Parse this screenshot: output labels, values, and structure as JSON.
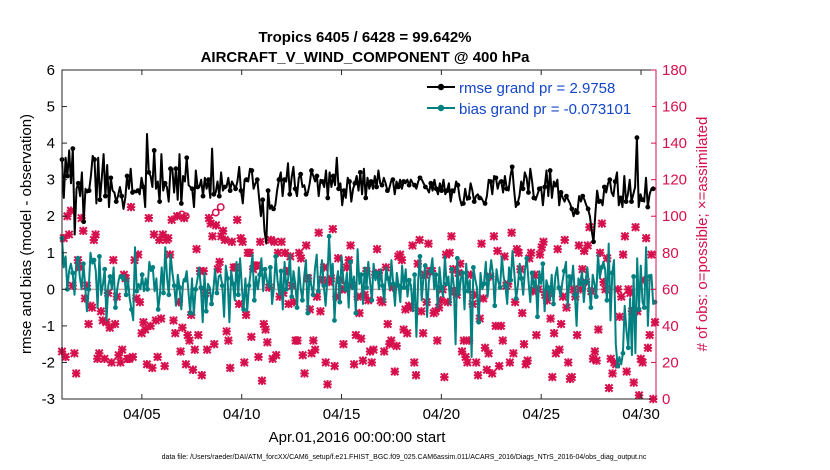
{
  "chart_data": {
    "type": "line",
    "title_line1": "Tropics 6405 / 6428 = 99.642%",
    "title_line2": "AIRCRAFT_V_WIND_COMPONENT @ 400 hPa",
    "xlabel": "Apr.01,2016 00:00:00 start",
    "ylabel_left": "rmse and bias (model - observation)",
    "ylabel_right": "# of obs: o=possible; ×=assimilated",
    "footer": "data file: /Users/raeder/DAI/ATM_forcXX/CAM6_setup/f.e21.FHIST_BGC.f09_025.CAM6assim.011/ACARS_2016/Diags_NTrS_2016-04/obs_diag_output.nc",
    "xlim": [
      1.0,
      30.75
    ],
    "ylim_left": [
      -3,
      6
    ],
    "ylim_right": [
      0,
      180
    ],
    "x_ticks": [
      {
        "value": 5,
        "label": "04/05"
      },
      {
        "value": 10,
        "label": "04/10"
      },
      {
        "value": 15,
        "label": "04/15"
      },
      {
        "value": 20,
        "label": "04/20"
      },
      {
        "value": 25,
        "label": "04/25"
      },
      {
        "value": 30,
        "label": "04/30"
      }
    ],
    "y_ticks_left": [
      "-3",
      "-2",
      "-1",
      "0",
      "1",
      "2",
      "3",
      "4",
      "5",
      "6"
    ],
    "y_ticks_right": [
      "0",
      "20",
      "40",
      "60",
      "80",
      "100",
      "120",
      "140",
      "160",
      "180"
    ],
    "legend": [
      {
        "label": "rmse grand pr = 2.9758",
        "color": "#000000"
      },
      {
        "label": "bias grand pr = -0.073101",
        "color": "#008080"
      }
    ],
    "legend_text_color": "#1446c8",
    "series": [
      {
        "name": "rmse",
        "color": "#000000",
        "values": [
          3.55,
          2.5,
          3.6,
          3.1,
          3.8,
          2.9,
          3.85,
          1.5,
          2.75,
          2.9,
          2.55,
          3.2,
          1.85,
          2.75,
          2.65,
          2.7,
          3.1,
          3.65,
          3.55,
          2.35,
          3.6,
          2.45,
          3.05,
          3.7,
          2.55,
          3.4,
          2.25,
          3.05,
          2.7,
          2.65,
          2.4,
          2.55,
          2.8,
          2.55,
          2.2,
          2.5,
          3.1,
          2.75,
          3.3,
          2.65,
          2.7,
          2.65,
          2.7,
          2.6,
          3.05,
          2.8,
          2.25,
          4.25,
          3.2,
          3.1,
          2.8,
          3.8,
          2.75,
          2.95,
          2.4,
          3.7,
          2.7,
          2.9,
          2.8,
          2.4,
          3.3,
          3.3,
          2.65,
          3.3,
          2.45,
          3.7,
          2.35,
          3.1,
          2.95,
          3.6,
          2.85,
          2.8,
          2.75,
          2.25,
          3.25,
          2.8,
          2.8,
          3.0,
          2.55,
          3.05,
          2.75,
          3.0,
          2.5,
          3.85,
          2.6,
          2.65,
          2.95,
          2.55,
          3.2,
          2.7,
          2.8,
          2.8,
          3.05,
          2.7,
          2.95,
          2.85,
          2.75,
          2.95,
          3.35,
          2.7,
          2.35,
          3.0,
          3.0,
          2.95,
          3.3,
          3.25,
          2.75,
          2.9,
          3.0,
          2.5,
          2.0,
          2.45,
          1.6,
          1.25,
          2.7,
          2.2,
          2.3,
          2.2,
          2.3,
          2.7,
          3.0,
          3.2,
          2.55,
          3.0,
          2.95,
          3.45,
          2.6,
          3.05,
          3.35,
          2.75,
          2.55,
          3.05,
          3.15,
          2.8,
          2.85,
          2.6,
          2.65,
          2.9,
          3.25,
          3.1,
          2.95,
          3.1,
          2.55,
          3.0,
          2.95,
          2.8,
          3.25,
          2.5,
          3.2,
          2.8,
          3.1,
          2.85,
          3.6,
          2.75,
          2.9,
          2.3,
          2.7,
          2.5,
          3.05,
          2.95,
          2.4,
          2.75,
          2.9,
          3.1,
          2.7,
          3.2,
          2.6,
          3.3,
          2.5,
          3.05,
          2.75,
          2.95,
          2.75,
          3.1,
          2.8,
          3.25,
          2.9,
          2.85,
          3.05,
          2.9,
          2.7,
          2.75,
          2.95,
          3.0,
          2.6,
          2.95,
          2.8,
          3.0,
          2.75,
          2.95,
          2.9,
          3.0,
          2.85,
          3.0,
          2.9,
          2.85,
          2.75,
          2.95,
          3.05,
          3.0,
          2.9,
          2.8,
          2.75,
          2.65,
          2.9,
          2.7,
          3.0,
          2.75,
          2.6,
          2.9,
          2.7,
          3.0,
          2.6,
          2.7,
          2.9,
          2.4,
          2.7,
          2.65,
          2.95,
          2.85,
          2.5,
          2.3,
          2.35,
          2.75,
          2.45,
          2.5,
          2.9,
          2.7,
          2.4,
          2.55,
          2.6,
          2.5,
          2.5,
          2.4,
          2.35,
          2.55,
          3.0,
          2.95,
          2.6,
          3.1,
          3.05,
          2.75,
          2.95,
          2.95,
          2.65,
          3.1,
          2.75,
          2.7,
          3.1,
          3.35,
          2.75,
          2.25,
          2.35,
          2.55,
          2.95,
          2.75,
          3.2,
          3.05,
          2.65,
          3.3,
          2.95,
          2.5,
          2.45,
          2.6,
          2.75,
          2.8,
          2.3,
          2.8,
          3.25,
          2.55,
          3.25,
          2.5,
          2.95,
          2.85,
          3.0,
          2.3,
          2.65,
          2.5,
          2.4,
          2.55,
          2.45,
          2.35,
          2.2,
          2.0,
          2.2,
          2.1,
          2.55,
          2.4,
          2.55,
          2.45,
          2.3,
          2.2,
          2.0,
          1.6,
          1.3,
          2.05,
          2.7,
          2.4,
          2.45,
          2.3,
          2.8,
          2.65,
          2.9,
          3.0,
          2.65,
          2.55,
          2.95,
          3.2,
          2.3,
          2.5,
          2.25,
          3.1,
          2.4,
          2.6,
          3.0,
          2.4,
          2.6,
          2.8,
          4.15,
          2.25,
          2.6,
          2.45,
          2.4,
          3.05,
          2.25,
          2.6,
          2.75,
          2.75,
          2.75
        ]
      },
      {
        "name": "bias",
        "color": "#008080",
        "values": [
          1.4,
          0.6,
          0.9,
          0.0,
          0.5,
          0.7,
          0.45,
          -0.15,
          0.7,
          0.85,
          0.35,
          0.0,
          0.7,
          0.1,
          -0.6,
          0.0,
          1.0,
          0.7,
          0.8,
          0.5,
          -0.5,
          0.9,
          -0.15,
          0.15,
          0.55,
          -0.85,
          0.1,
          0.35,
          0.0,
          0.6,
          -0.5,
          0.0,
          0.3,
          0.35,
          0.25,
          0.4,
          -0.15,
          0.3,
          -0.25,
          -0.55,
          -0.85,
          1.15,
          -0.05,
          0.15,
          0.0,
          0.4,
          -0.05,
          0.3,
          0.0,
          0.75,
          0.5,
          0.6,
          -0.05,
          0.3,
          -0.55,
          -0.15,
          0.6,
          -0.1,
          1.15,
          0.3,
          -0.15,
          0.95,
          0.45,
          0.1,
          -0.45,
          0.4,
          0.05,
          -0.55,
          0.2,
          0.25,
          0.5,
          -0.05,
          -0.65,
          0.3,
          -0.7,
          0.0,
          0.25,
          0.6,
          0.05,
          -0.9,
          0.45,
          -0.6,
          0.15,
          0.05,
          -0.4,
          0.0,
          0.55,
          -0.1,
          0.35,
          0.4,
          0.1,
          -0.75,
          0.65,
          0.3,
          -0.9,
          0.5,
          0.15,
          -0.3,
          0.75,
          -0.15,
          0.85,
          0.05,
          -0.55,
          0.3,
          -0.6,
          0.1,
          0.5,
          0.95,
          -0.3,
          0.35,
          0.0,
          0.4,
          0.85,
          -0.05,
          0.55,
          0.25,
          0.05,
          0.6,
          -0.4,
          0.05,
          0.9,
          0.25,
          -0.15,
          0.5,
          -0.55,
          0.75,
          0.0,
          0.3,
          0.95,
          -0.2,
          0.5,
          0.15,
          -0.5,
          0.6,
          0.05,
          -0.3,
          0.35,
          0.8,
          -0.65,
          0.4,
          0.1,
          -0.15,
          0.55,
          0.95,
          -0.05,
          0.3,
          0.8,
          0.1,
          -0.45,
          0.25,
          1.45,
          0.35,
          0.7,
          -0.85,
          0.15,
          0.5,
          -0.35,
          0.9,
          0.25,
          0.0,
          0.45,
          -0.5,
          0.75,
          0.0,
          0.35,
          -0.65,
          1.1,
          0.15,
          0.4,
          -0.4,
          0.6,
          0.05,
          0.75,
          0.2,
          -0.3,
          0.7,
          0.25,
          0.45,
          0.0,
          0.55,
          0.1,
          -0.35,
          0.6,
          0.3,
          0.0,
          0.8,
          0.15,
          -0.45,
          0.45,
          0.1,
          -0.35,
          0.65,
          0.05,
          0.55,
          -0.2,
          0.25,
          0.1,
          -0.6,
          0.4,
          -1.3,
          0.25,
          0.9,
          -0.3,
          0.35,
          0.65,
          -0.75,
          0.2,
          0.5,
          0.85,
          0.0,
          0.4,
          -0.5,
          0.6,
          0.05,
          -0.2,
          0.9,
          0.15,
          0.35,
          -0.4,
          0.55,
          0.1,
          -1.5,
          0.85,
          -0.15,
          0.3,
          0.45,
          -0.55,
          0.7,
          -0.05,
          0.25,
          -1.85,
          0.6,
          0.3,
          0.05,
          -0.9,
          0.45,
          0.0,
          0.15,
          0.75,
          -0.2,
          0.35,
          0.8,
          0.4,
          -0.45,
          0.55,
          0.2,
          0.05,
          0.9,
          0.35,
          0.1,
          -0.4,
          0.6,
          0.25,
          1.05,
          0.45,
          -0.25,
          0.1,
          0.7,
          0.3,
          -0.15,
          0.55,
          0.85,
          0.2,
          -0.35,
          0.45,
          0.05,
          0.3,
          -0.75,
          0.5,
          0.15,
          0.7,
          -0.6,
          0.25,
          0.05,
          -0.3,
          0.4,
          -0.4,
          0.35,
          0.6,
          0.05,
          -0.2,
          0.2,
          0.5,
          0.75,
          -0.5,
          0.35,
          0.1,
          0.65,
          -0.15,
          -1.0,
          0.3,
          0.15,
          0.5,
          -0.35,
          0.2,
          0.6,
          0.05,
          -0.5,
          0.4,
          0.15,
          -0.2,
          0.95,
          0.3,
          0.6,
          0.75,
          0.55,
          -0.3,
          1.25,
          -0.85,
          0.45,
          0.8,
          -1.5,
          -2.1,
          -1.85,
          -2.05,
          -1.75,
          -0.45,
          -1.15,
          -1.6,
          -0.25,
          -1.8,
          0.35,
          -1.75,
          0.85,
          -0.55,
          0.65,
          -0.35,
          -0.5,
          1.15,
          -1.0,
          0.35,
          0.4,
          -0.4,
          -0.35
        ]
      },
      {
        "name": "obs_assimilated",
        "color": "#d6104c",
        "axis": "right",
        "marker": "x",
        "values": [
          26,
          88,
          23,
          100,
          90,
          103,
          62,
          25,
          14,
          76,
          72,
          99,
          92,
          55,
          62,
          41,
          51,
          50,
          87,
          90,
          22,
          25,
          48,
          43,
          22,
          42,
          58,
          39,
          20,
          76,
          41,
          56,
          24,
          20,
          27,
          68,
          66,
          22,
          22,
          105,
          23,
          76,
          55,
          79,
          53,
          36,
          42,
          38,
          19,
          99,
          40,
          17,
          90,
          43,
          23,
          87,
          44,
          90,
          18,
          87,
          88,
          79,
          98,
          43,
          36,
          100,
          53,
          26,
          39,
          99,
          19,
          35,
          32,
          46,
          16,
          27,
          82,
          35,
          70,
          13,
          70,
          58,
          27,
          99,
          96,
          89,
          30,
          95,
          71,
          75,
          89,
          92,
          87,
          37,
          32,
          17,
          86,
          72,
          72,
          98,
          52,
          88,
          86,
          20,
          46,
          80,
          80,
          34,
          71,
          73,
          73,
          23,
          86,
          10,
          41,
          38,
          31,
          61,
          87,
          22,
          86,
          24,
          80,
          56,
          86,
          58,
          80,
          70,
          52,
          78,
          62,
          53,
          32,
          32,
          80,
          77,
          24,
          14,
          84,
          66,
          49,
          25,
          32,
          27,
          56,
          91,
          48,
          65,
          72,
          20,
          8,
          64,
          66,
          93,
          18,
          56,
          77,
          65,
          60,
          30,
          60,
          72,
          76,
          84,
          62,
          19,
          35,
          56,
          47,
          33,
          21,
          57,
          70,
          54,
          26,
          20,
          27,
          68,
          82,
          69,
          54,
          53,
          26,
          72,
          41,
          30,
          32,
          61,
          15,
          29,
          78,
          79,
          76,
          38,
          49,
          36,
          51,
          50,
          84,
          20,
          13,
          74,
          87,
          48,
          36,
          68,
          53,
          85,
          70,
          70,
          47,
          48,
          32,
          50,
          54,
          60,
          12,
          79,
          53,
          80,
          89,
          71,
          59,
          57,
          69,
          74,
          26,
          32,
          23,
          20,
          32,
          68,
          52,
          57,
          20,
          13,
          44,
          85,
          55,
          28,
          16,
          25,
          67,
          14,
          89,
          40,
          81,
          18,
          40,
          32,
          78,
          62,
          63,
          20,
          91,
          25,
          53,
          82,
          80,
          71,
          47,
          30,
          19,
          21,
          77,
          80,
          59,
          68,
          35,
          60,
          79,
          83,
          86,
          57,
          54,
          58,
          44,
          12,
          36,
          25,
          82,
          27,
          41,
          56,
          87,
          50,
          20,
          11,
          12,
          60,
          56,
          35,
          84,
          60,
          71,
          81,
          64,
          84,
          94,
          59,
          22,
          26,
          21,
          38,
          80,
          96,
          64,
          60,
          77,
          6,
          22,
          14,
          20,
          19,
          60,
          45,
          56,
          79,
          89,
          15,
          60,
          58,
          48,
          9,
          94,
          48,
          2,
          22,
          20,
          65,
          88,
          28,
          35,
          79,
          0,
          42
        ]
      },
      {
        "name": "obs_possible",
        "color": "#d6104c",
        "axis": "right",
        "marker": "o",
        "values": [
          {
            "x": 7.0,
            "y": 101
          },
          {
            "x": 8.95,
            "y": 105
          },
          {
            "x": 8.7,
            "y": 102
          },
          {
            "x": 7.2,
            "y": 100
          }
        ]
      }
    ]
  }
}
